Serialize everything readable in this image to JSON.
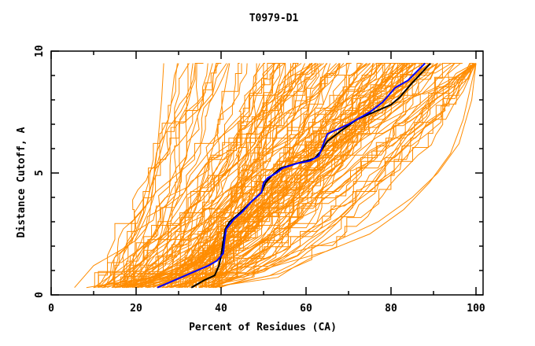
{
  "chart_data": {
    "type": "line",
    "title": "T0979-D1",
    "xlabel": "Percent of Residues (CA)",
    "ylabel": "Distance Cutoff, A",
    "xlim": [
      0,
      100
    ],
    "ylim": [
      0,
      10
    ],
    "x_ticks": [
      0,
      20,
      40,
      60,
      80,
      100
    ],
    "x_minor_ticks": [
      10,
      30,
      50,
      70,
      90
    ],
    "y_ticks": [
      0,
      5,
      10
    ],
    "y_minor_ticks": [
      1,
      2,
      3,
      4,
      6,
      7,
      8,
      9
    ],
    "grid": false,
    "legend": "none",
    "colors": {
      "models": "#ff8c00",
      "highlight_black": "#000000",
      "highlight_blue": "#0000ff",
      "axis": "#000000"
    },
    "highlight_series": [
      {
        "name": "black-model",
        "color": "#000000",
        "points": [
          [
            33,
            0.3
          ],
          [
            36,
            0.6
          ],
          [
            38.5,
            0.8
          ],
          [
            39.5,
            1.2
          ],
          [
            40,
            1.6
          ],
          [
            40.5,
            2.2
          ],
          [
            41,
            2.7
          ],
          [
            42,
            3.0
          ],
          [
            44,
            3.3
          ],
          [
            47,
            3.8
          ],
          [
            49.5,
            4.2
          ],
          [
            50.5,
            4.6
          ],
          [
            52,
            4.9
          ],
          [
            54,
            5.2
          ],
          [
            58,
            5.4
          ],
          [
            62,
            5.6
          ],
          [
            63.5,
            5.9
          ],
          [
            65,
            6.3
          ],
          [
            68,
            6.7
          ],
          [
            72,
            7.2
          ],
          [
            76,
            7.5
          ],
          [
            80,
            7.8
          ],
          [
            82,
            8.1
          ],
          [
            85,
            8.7
          ],
          [
            89.3,
            9.5
          ]
        ]
      },
      {
        "name": "blue-model",
        "color": "#0000ff",
        "points": [
          [
            25,
            0.3
          ],
          [
            29,
            0.6
          ],
          [
            33,
            0.9
          ],
          [
            37,
            1.2
          ],
          [
            39,
            1.4
          ],
          [
            40.5,
            1.7
          ],
          [
            40.8,
            2.2
          ],
          [
            41.2,
            2.7
          ],
          [
            43,
            3.1
          ],
          [
            45,
            3.4
          ],
          [
            47,
            3.8
          ],
          [
            49.5,
            4.2
          ],
          [
            50,
            4.6
          ],
          [
            51,
            4.8
          ],
          [
            53,
            5.0
          ],
          [
            54.5,
            5.2
          ],
          [
            58,
            5.4
          ],
          [
            61,
            5.5
          ],
          [
            63,
            5.7
          ],
          [
            65,
            6.6
          ],
          [
            70,
            7.0
          ],
          [
            75,
            7.5
          ],
          [
            78,
            7.9
          ],
          [
            81,
            8.5
          ],
          [
            84,
            8.8
          ],
          [
            88,
            9.5
          ]
        ]
      }
    ],
    "model_series_count": 150,
    "model_series_generator": {
      "description": "orange model curves: start percent at cutoff 0.3 and end percent at cutoff 9.5",
      "start_range": [
        5.5,
        40
      ],
      "end_range": [
        25,
        100
      ]
    },
    "model_series_samples": [
      [
        [
          5.5,
          0.3
        ],
        [
          8,
          0.8
        ],
        [
          10,
          1.2
        ],
        [
          13,
          1.5
        ],
        [
          17,
          1.9
        ],
        [
          20,
          2.5
        ],
        [
          22,
          3.4
        ],
        [
          24,
          4.8
        ],
        [
          26,
          6.0
        ],
        [
          28,
          7.5
        ],
        [
          29,
          9.0
        ],
        [
          30,
          9.5
        ]
      ],
      [
        [
          10,
          0.3
        ],
        [
          15,
          0.9
        ],
        [
          19,
          1.4
        ],
        [
          21,
          2.1
        ],
        [
          23,
          3.0
        ],
        [
          24,
          4.5
        ],
        [
          25,
          6.0
        ],
        [
          26,
          8.0
        ],
        [
          26.5,
          9.5
        ]
      ],
      [
        [
          11,
          0.3
        ],
        [
          16,
          0.6
        ],
        [
          20,
          1.1
        ],
        [
          24,
          1.8
        ],
        [
          27,
          2.6
        ],
        [
          29,
          4.0
        ],
        [
          31,
          5.2
        ],
        [
          33,
          6.5
        ],
        [
          36,
          8.2
        ],
        [
          38,
          9.5
        ]
      ],
      [
        [
          12,
          0.3
        ],
        [
          18,
          0.5
        ],
        [
          24,
          1.0
        ],
        [
          28,
          1.6
        ],
        [
          31,
          2.4
        ],
        [
          34,
          3.5
        ],
        [
          36,
          4.8
        ],
        [
          38,
          6.0
        ],
        [
          40,
          7.6
        ],
        [
          42,
          9.5
        ]
      ],
      [
        [
          15,
          0.3
        ],
        [
          22,
          0.5
        ],
        [
          28,
          0.9
        ],
        [
          33,
          1.5
        ],
        [
          37,
          2.3
        ],
        [
          40,
          3.1
        ],
        [
          43,
          4.1
        ],
        [
          46,
          5.2
        ],
        [
          49,
          6.4
        ],
        [
          52,
          7.8
        ],
        [
          55,
          9.5
        ]
      ],
      [
        [
          20,
          0.3
        ],
        [
          28,
          0.5
        ],
        [
          34,
          0.9
        ],
        [
          39,
          1.5
        ],
        [
          44,
          2.3
        ],
        [
          48,
          3.2
        ],
        [
          52,
          4.2
        ],
        [
          56,
          5.3
        ],
        [
          60,
          6.5
        ],
        [
          64,
          7.8
        ],
        [
          68,
          9.5
        ]
      ],
      [
        [
          26,
          0.3
        ],
        [
          33,
          0.5
        ],
        [
          40,
          0.8
        ],
        [
          46,
          1.3
        ],
        [
          52,
          2.0
        ],
        [
          57,
          2.9
        ],
        [
          62,
          3.9
        ],
        [
          66,
          5.0
        ],
        [
          70,
          6.2
        ],
        [
          75,
          7.6
        ],
        [
          80,
          9.5
        ]
      ],
      [
        [
          30,
          0.3
        ],
        [
          40,
          0.6
        ],
        [
          50,
          1.0
        ],
        [
          58,
          1.6
        ],
        [
          64,
          2.4
        ],
        [
          70,
          3.4
        ],
        [
          75,
          4.5
        ],
        [
          80,
          5.7
        ],
        [
          85,
          7.0
        ],
        [
          90,
          8.3
        ],
        [
          95,
          9.5
        ]
      ],
      [
        [
          35,
          0.3
        ],
        [
          45,
          0.8
        ],
        [
          55,
          1.3
        ],
        [
          65,
          1.8
        ],
        [
          75,
          2.5
        ],
        [
          83,
          3.5
        ],
        [
          89,
          4.6
        ],
        [
          94,
          5.8
        ],
        [
          97,
          7.2
        ],
        [
          100,
          9.5
        ]
      ],
      [
        [
          38,
          0.3
        ],
        [
          44,
          0.7
        ],
        [
          50,
          1.2
        ],
        [
          58,
          1.8
        ],
        [
          67,
          2.2
        ],
        [
          77,
          3.0
        ],
        [
          85,
          4.0
        ],
        [
          91,
          5.0
        ],
        [
          96,
          6.2
        ],
        [
          99,
          8.0
        ],
        [
          100,
          9.5
        ]
      ]
    ]
  }
}
